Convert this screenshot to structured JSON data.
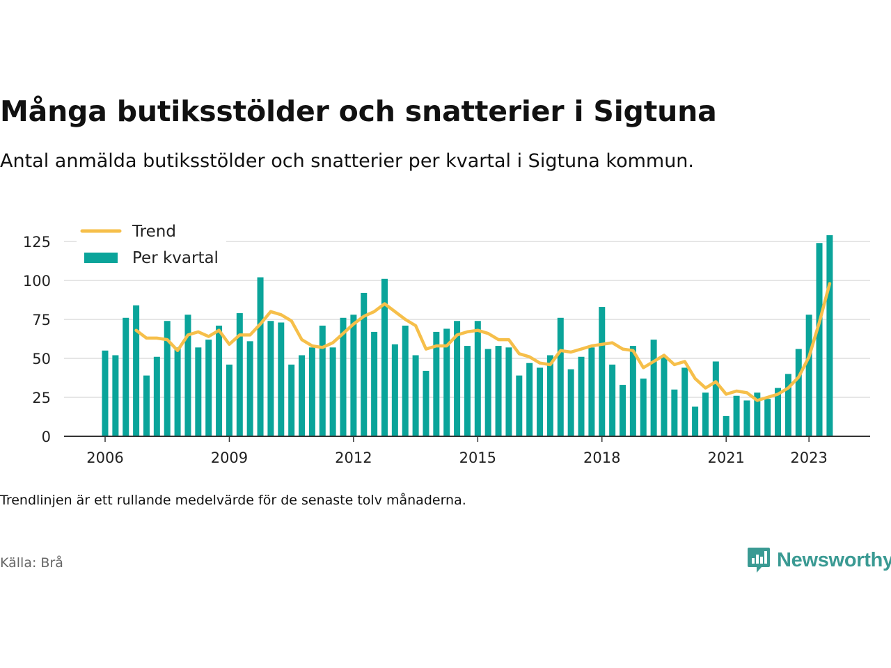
{
  "header": {
    "title": "Många butiksstölder och snatterier i Sigtuna",
    "subtitle": "Antal anmälda butiksstölder och snatterier per kvartal i Sigtuna kommun."
  },
  "footer": {
    "note": "Trendlinjen är ett rullande medelvärde för de senaste tolv månaderna.",
    "source": "Källa: Brå",
    "brand": "Newsworthy",
    "brand_icon": "newsworthy-logo-icon"
  },
  "colors": {
    "bar": "#0aa49a",
    "trend": "#f6bf4a",
    "grid": "#dddddd",
    "axis": "#333333",
    "brand": "#3a9a93"
  },
  "chart_data": {
    "type": "bar",
    "x_start": "2006-Q1",
    "x_ticks": [
      "2006",
      "2009",
      "2012",
      "2015",
      "2018",
      "2021",
      "2023"
    ],
    "ylim": [
      0,
      125
    ],
    "yticks": [
      0,
      25,
      50,
      75,
      100,
      125
    ],
    "legend": {
      "position": "top-left",
      "entries": [
        "Trend",
        "Per kvartal"
      ]
    },
    "grid": true,
    "series": [
      {
        "name": "Per kvartal",
        "type": "bar",
        "values": [
          55,
          52,
          76,
          84,
          39,
          51,
          74,
          57,
          78,
          57,
          62,
          71,
          46,
          79,
          61,
          102,
          74,
          73,
          46,
          52,
          57,
          71,
          57,
          76,
          78,
          92,
          67,
          101,
          59,
          71,
          52,
          42,
          67,
          69,
          74,
          58,
          74,
          56,
          58,
          57,
          39,
          47,
          44,
          52,
          76,
          43,
          51,
          57,
          83,
          46,
          33,
          58,
          37,
          62,
          51,
          30,
          44,
          19,
          28,
          48,
          13,
          26,
          23,
          28,
          24,
          31,
          40,
          56,
          78,
          124,
          129
        ]
      },
      {
        "name": "Trend",
        "type": "line",
        "start_index": 3,
        "values": [
          68,
          63,
          63,
          62,
          55,
          65,
          67,
          64,
          68,
          59,
          65,
          65,
          72,
          80,
          78,
          74,
          62,
          58,
          57,
          60,
          66,
          72,
          77,
          80,
          85,
          80,
          75,
          71,
          56,
          58,
          58,
          65,
          67,
          68,
          66,
          62,
          62,
          53,
          51,
          47,
          46,
          55,
          54,
          56,
          58,
          59,
          60,
          56,
          55,
          44,
          48,
          52,
          46,
          48,
          37,
          31,
          35,
          27,
          29,
          28,
          23,
          25,
          27,
          31,
          38,
          51,
          73,
          98
        ]
      }
    ]
  }
}
